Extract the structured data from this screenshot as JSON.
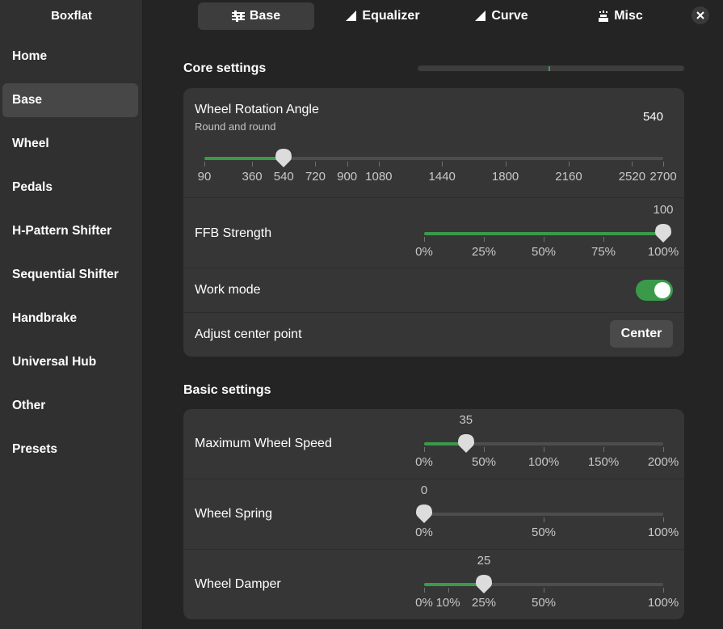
{
  "app": {
    "title": "Boxflat"
  },
  "sidebar": {
    "items": [
      {
        "label": "Home"
      },
      {
        "label": "Base"
      },
      {
        "label": "Wheel"
      },
      {
        "label": "Pedals"
      },
      {
        "label": "H-Pattern Shifter"
      },
      {
        "label": "Sequential Shifter"
      },
      {
        "label": "Handbrake"
      },
      {
        "label": "Universal Hub"
      },
      {
        "label": "Other"
      },
      {
        "label": "Presets"
      }
    ],
    "active": "Base"
  },
  "tabs": [
    {
      "label": "Base",
      "icon": "sliders-icon"
    },
    {
      "label": "Equalizer",
      "icon": "equalizer-icon"
    },
    {
      "label": "Curve",
      "icon": "curve-icon"
    },
    {
      "label": "Misc",
      "icon": "misc-icon"
    }
  ],
  "core": {
    "title": "Core settings",
    "rotation": {
      "label": "Wheel Rotation Angle",
      "sublabel": "Round and round",
      "value": "540",
      "min": 90,
      "max": 2700,
      "current": 540,
      "ticks": [
        "90",
        "360",
        "540",
        "720",
        "900",
        "1080",
        "1440",
        "1800",
        "2160",
        "2520",
        "2700"
      ]
    },
    "ffb": {
      "label": "FFB Strength",
      "value": "100",
      "min": 0,
      "max": 100,
      "current": 100,
      "ticks": [
        "0%",
        "25%",
        "50%",
        "75%",
        "100%"
      ]
    },
    "work_mode": {
      "label": "Work mode",
      "on": true
    },
    "center": {
      "label": "Adjust center point",
      "button": "Center"
    }
  },
  "basic": {
    "title": "Basic settings",
    "speed": {
      "label": "Maximum Wheel Speed",
      "value": "35",
      "min": 0,
      "max": 200,
      "current": 35,
      "ticks": [
        "0%",
        "50%",
        "100%",
        "150%",
        "200%"
      ]
    },
    "spring": {
      "label": "Wheel Spring",
      "value": "0",
      "min": 0,
      "max": 100,
      "current": 0,
      "ticks": [
        "0%",
        "50%",
        "100%"
      ]
    },
    "damper": {
      "label": "Wheel Damper",
      "value": "25",
      "min": 0,
      "max": 100,
      "current": 25,
      "ticks": [
        "0%",
        "10%",
        "25%",
        "50%",
        "100%"
      ]
    }
  },
  "colors": {
    "accent": "#3b9a4a",
    "background": "#242424",
    "sidebar": "#303030",
    "card": "#363636"
  }
}
